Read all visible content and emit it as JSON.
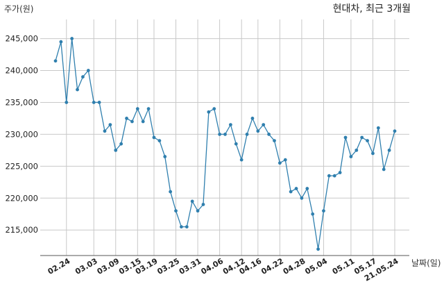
{
  "chart_data": {
    "type": "line",
    "title": "현대차, 최근 3개월",
    "ylabel": "주가(원)",
    "xlabel": "날짜(일)",
    "ylim": [
      211000,
      248000
    ],
    "yticks": [
      215000,
      220000,
      225000,
      230000,
      235000,
      240000,
      245000
    ],
    "ytick_labels": [
      "215,000",
      "220,000",
      "225,000",
      "230,000",
      "235,000",
      "240,000",
      "245,000"
    ],
    "xtick_labels": [
      "02.24",
      "03.03",
      "03.09",
      "03.15",
      "03.19",
      "03.25",
      "03.31",
      "04.06",
      "04.12",
      "04.16",
      "04.22",
      "04.28",
      "05.04",
      "05.11",
      "05.17",
      "21.05.24"
    ],
    "xtick_index": [
      2,
      7,
      11,
      15,
      18,
      22,
      26,
      30,
      34,
      37,
      41,
      45,
      49,
      54,
      58,
      62
    ],
    "grid": true,
    "line_color": "#2f7fae",
    "series": [
      {
        "values": [
          241500,
          244500,
          235000,
          245000,
          237000,
          239000,
          240000,
          235000,
          235000,
          230500,
          231500,
          227500,
          228500,
          232500,
          232000,
          234000,
          232000,
          234000,
          229500,
          229000,
          226500,
          221000,
          218000,
          215500,
          215500,
          219500,
          218000,
          219000,
          233500,
          234000,
          230000,
          230000,
          231500,
          228500,
          226000,
          230000,
          232500,
          230500,
          231500,
          230000,
          229000,
          225500,
          226000,
          221000,
          221500,
          220000,
          221500,
          217500,
          212000,
          218000,
          223500,
          223500,
          224000,
          229500,
          226500,
          227500,
          229500,
          229000,
          227000,
          231000,
          224500,
          227500,
          230500
        ]
      }
    ]
  }
}
